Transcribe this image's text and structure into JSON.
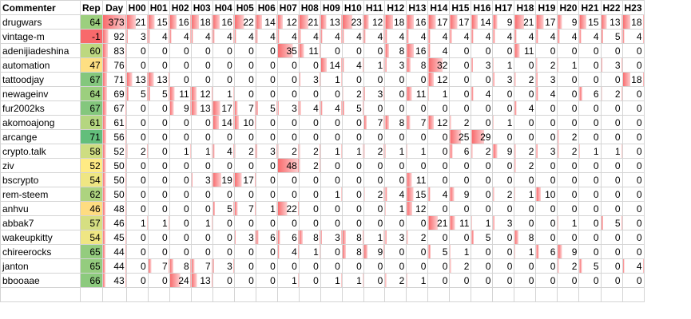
{
  "headers": [
    "Commenter",
    "Rep",
    "Day",
    "H00",
    "H01",
    "H02",
    "H03",
    "H04",
    "H05",
    "H06",
    "H07",
    "H08",
    "H09",
    "H10",
    "H11",
    "H12",
    "H13",
    "H14",
    "H15",
    "H16",
    "H17",
    "H18",
    "H19",
    "H20",
    "H21",
    "H22",
    "H23"
  ],
  "colors": {
    "rep_red": "#f8696b",
    "rep_yellow": "#ffeb84",
    "rep_green": "#63be7b",
    "bar_red": "#f8696b",
    "grid": "#d4d4d4"
  },
  "bar_max": 48,
  "rows": [
    {
      "name": "drugwars",
      "rep": 64,
      "day": 373,
      "hours": [
        21,
        15,
        16,
        18,
        16,
        22,
        14,
        12,
        21,
        13,
        23,
        12,
        18,
        16,
        17,
        17,
        14,
        9,
        21,
        17,
        9,
        15,
        13,
        18
      ]
    },
    {
      "name": "vintage-m",
      "rep": -1,
      "day": 92,
      "hours": [
        3,
        4,
        4,
        4,
        4,
        4,
        4,
        4,
        4,
        4,
        4,
        4,
        4,
        4,
        4,
        4,
        4,
        4,
        4,
        4,
        4,
        4,
        5,
        4
      ]
    },
    {
      "name": "adenijiadeshina",
      "rep": 60,
      "day": 83,
      "hours": [
        0,
        0,
        0,
        0,
        0,
        0,
        0,
        35,
        11,
        0,
        0,
        0,
        8,
        16,
        4,
        0,
        0,
        0,
        11,
        0,
        0,
        0,
        0,
        0
      ]
    },
    {
      "name": "automation",
      "rep": 47,
      "day": 76,
      "hours": [
        0,
        0,
        0,
        0,
        0,
        0,
        0,
        0,
        0,
        14,
        4,
        1,
        3,
        8,
        32,
        0,
        3,
        1,
        0,
        2,
        1,
        0,
        3,
        0
      ]
    },
    {
      "name": "tattoodjay",
      "rep": 67,
      "day": 71,
      "hours": [
        13,
        13,
        0,
        0,
        0,
        0,
        0,
        0,
        3,
        1,
        0,
        0,
        0,
        0,
        12,
        0,
        0,
        3,
        2,
        3,
        0,
        0,
        0,
        18
      ]
    },
    {
      "name": "newageinv",
      "rep": 64,
      "day": 69,
      "hours": [
        5,
        5,
        11,
        12,
        1,
        0,
        0,
        0,
        0,
        0,
        2,
        3,
        0,
        11,
        1,
        0,
        4,
        0,
        0,
        4,
        0,
        6,
        2,
        0
      ]
    },
    {
      "name": "fur2002ks",
      "rep": 67,
      "day": 67,
      "hours": [
        0,
        0,
        9,
        13,
        17,
        7,
        5,
        3,
        4,
        4,
        5,
        0,
        0,
        0,
        0,
        0,
        0,
        0,
        4,
        0,
        0,
        0,
        0,
        0
      ]
    },
    {
      "name": "akomoajong",
      "rep": 61,
      "day": 61,
      "hours": [
        0,
        0,
        0,
        0,
        14,
        10,
        0,
        0,
        0,
        0,
        0,
        7,
        8,
        7,
        12,
        2,
        0,
        1,
        0,
        0,
        0,
        0,
        0,
        0
      ]
    },
    {
      "name": "arcange",
      "rep": 71,
      "day": 56,
      "hours": [
        0,
        0,
        0,
        0,
        0,
        0,
        0,
        0,
        0,
        0,
        0,
        0,
        0,
        0,
        0,
        25,
        29,
        0,
        0,
        0,
        2,
        0,
        0,
        0
      ]
    },
    {
      "name": "crypto.talk",
      "rep": 58,
      "day": 52,
      "hours": [
        2,
        0,
        1,
        1,
        4,
        2,
        3,
        2,
        2,
        1,
        1,
        2,
        1,
        1,
        0,
        6,
        2,
        9,
        2,
        3,
        2,
        1,
        1,
        0
      ]
    },
    {
      "name": "ziv",
      "rep": 52,
      "day": 50,
      "hours": [
        0,
        0,
        0,
        0,
        0,
        0,
        0,
        48,
        2,
        0,
        0,
        0,
        0,
        0,
        0,
        0,
        0,
        0,
        2,
        0,
        0,
        0,
        0,
        0
      ]
    },
    {
      "name": "bscrypto",
      "rep": 54,
      "day": 50,
      "hours": [
        0,
        0,
        0,
        3,
        19,
        17,
        0,
        0,
        0,
        0,
        0,
        0,
        0,
        11,
        0,
        0,
        0,
        0,
        0,
        0,
        0,
        0,
        0,
        0
      ]
    },
    {
      "name": "rem-steem",
      "rep": 62,
      "day": 50,
      "hours": [
        0,
        0,
        0,
        0,
        0,
        0,
        0,
        0,
        0,
        1,
        0,
        2,
        4,
        15,
        4,
        9,
        0,
        2,
        1,
        10,
        0,
        0,
        0,
        0
      ]
    },
    {
      "name": "anhvu",
      "rep": 46,
      "day": 48,
      "hours": [
        0,
        0,
        0,
        0,
        5,
        7,
        1,
        22,
        0,
        0,
        0,
        0,
        1,
        12,
        0,
        0,
        0,
        0,
        0,
        0,
        0,
        0,
        0,
        0
      ]
    },
    {
      "name": "abbak7",
      "rep": 57,
      "day": 46,
      "hours": [
        1,
        1,
        0,
        1,
        0,
        0,
        0,
        0,
        0,
        0,
        0,
        0,
        0,
        0,
        21,
        11,
        1,
        3,
        0,
        0,
        1,
        0,
        5,
        0
      ]
    },
    {
      "name": "wakeupkitty",
      "rep": 54,
      "day": 45,
      "hours": [
        0,
        0,
        0,
        0,
        0,
        3,
        6,
        6,
        8,
        3,
        8,
        1,
        3,
        2,
        0,
        0,
        5,
        0,
        8,
        0,
        0,
        0,
        0,
        0
      ]
    },
    {
      "name": "chireerocks",
      "rep": 65,
      "day": 44,
      "hours": [
        0,
        0,
        0,
        0,
        0,
        0,
        0,
        4,
        1,
        0,
        8,
        9,
        0,
        0,
        5,
        1,
        0,
        0,
        1,
        6,
        9,
        0,
        0,
        0
      ]
    },
    {
      "name": "janton",
      "rep": 65,
      "day": 44,
      "hours": [
        0,
        7,
        8,
        7,
        3,
        0,
        0,
        0,
        0,
        0,
        0,
        0,
        0,
        0,
        0,
        2,
        0,
        0,
        0,
        0,
        2,
        5,
        0,
        4
      ]
    },
    {
      "name": "bbooaae",
      "rep": 66,
      "day": 43,
      "hours": [
        0,
        0,
        24,
        13,
        0,
        0,
        0,
        1,
        0,
        1,
        1,
        0,
        2,
        1,
        0,
        0,
        0,
        0,
        0,
        0,
        0,
        0,
        0,
        0
      ]
    }
  ]
}
